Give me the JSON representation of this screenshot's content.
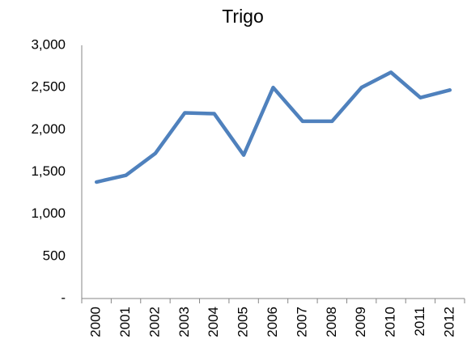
{
  "chart_data": {
    "type": "line",
    "title": "Trigo",
    "categories": [
      "2000",
      "2001",
      "2002",
      "2003",
      "2004",
      "2005",
      "2006",
      "2007",
      "2008",
      "2009",
      "2010",
      "2011",
      "2012"
    ],
    "values": [
      1380,
      1460,
      1720,
      2200,
      2190,
      1700,
      2500,
      2100,
      2100,
      2500,
      2680,
      2380,
      2470
    ],
    "color": "#4f81bd",
    "ylim": [
      0,
      3000
    ],
    "yticks": [
      {
        "value": 0,
        "label": "-"
      },
      500,
      {
        "value": 1000,
        "label": "1,000"
      },
      {
        "value": 1500,
        "label": "1,500"
      },
      {
        "value": 2000,
        "label": "2,000"
      },
      {
        "value": 2500,
        "label": "2,500"
      },
      {
        "value": 3000,
        "label": "3,000"
      }
    ],
    "grid": false
  }
}
